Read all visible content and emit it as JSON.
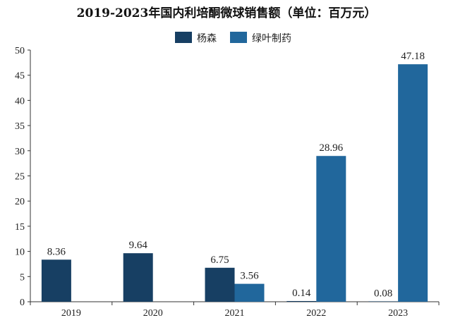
{
  "chart_data": {
    "type": "bar",
    "title": "2019-2023年国内利培酮微球销售额（单位：百万元）",
    "xlabel": "",
    "ylabel": "",
    "categories": [
      "2019",
      "2020",
      "2021",
      "2022",
      "2023"
    ],
    "series": [
      {
        "name": "杨森",
        "values": [
          8.36,
          9.64,
          6.75,
          0.14,
          0.08
        ],
        "labels": [
          "8.36",
          "9.64",
          "6.75",
          "0.14",
          "0.08"
        ]
      },
      {
        "name": "绿叶制药",
        "values": [
          null,
          null,
          3.56,
          28.96,
          47.18
        ],
        "labels": [
          "",
          "",
          "3.56",
          "28.96",
          "47.18"
        ]
      }
    ],
    "ylim": [
      0,
      50
    ],
    "yticks": [
      0,
      5,
      10,
      15,
      20,
      25,
      30,
      35,
      40,
      45,
      50
    ],
    "grid": false,
    "legend": "top-center"
  },
  "colors": {
    "series": [
      "#173f63",
      "#21679c"
    ],
    "axis": "#333333",
    "text": "#222222"
  }
}
